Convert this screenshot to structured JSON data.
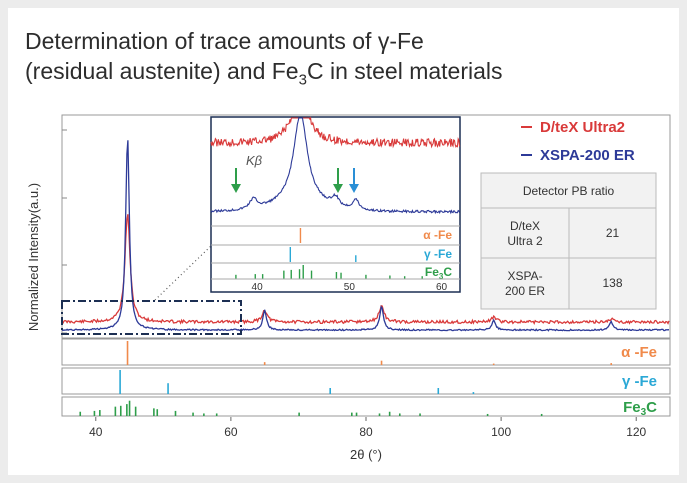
{
  "title": {
    "line1": "Determination of trace amounts of γ-Fe",
    "line2_prefix": "(residual austenite) and Fe",
    "line2_sub": "3",
    "line2_suffix": "C in steel materials"
  },
  "colors": {
    "dtex": "#d93a3a",
    "xspa": "#2d3a98",
    "alpha": "#f08a4b",
    "gamma": "#2aa8d6",
    "fe3c": "#2e9e4a",
    "box": "#1c2f53",
    "arrow_green": "#2e9e4a",
    "arrow_blue": "#2a8fd6"
  },
  "chart_data": {
    "type": "line",
    "xlabel": "2θ (°)",
    "ylabel": "Normalized Intensity(a.u.)",
    "xlim": [
      35,
      125
    ],
    "xticks": [
      40,
      60,
      80,
      100,
      120
    ],
    "series": [
      {
        "name": "D/teX Ultra2",
        "color": "#d93a3a",
        "peaks": [
          [
            44.7,
            0.54
          ],
          [
            65.0,
            0.06
          ],
          [
            82.3,
            0.08
          ],
          [
            98.9,
            0.025
          ],
          [
            116.3,
            0.015
          ]
        ]
      },
      {
        "name": "XSPA-200 ER",
        "color": "#2d3a98",
        "peaks": [
          [
            44.7,
            0.97
          ],
          [
            65.0,
            0.1
          ],
          [
            82.3,
            0.12
          ],
          [
            98.9,
            0.05
          ],
          [
            116.3,
            0.04
          ]
        ]
      }
    ],
    "reference_rows": [
      {
        "label_main": "α -Fe",
        "color": "#f08a4b",
        "lines": [
          [
            44.7,
            1.0
          ],
          [
            65.0,
            0.12
          ],
          [
            82.3,
            0.18
          ],
          [
            98.9,
            0.06
          ],
          [
            116.3,
            0.08
          ]
        ]
      },
      {
        "label_main": "γ -Fe",
        "color": "#2aa8d6",
        "lines": [
          [
            43.6,
            1.0
          ],
          [
            50.7,
            0.45
          ],
          [
            74.7,
            0.25
          ],
          [
            90.7,
            0.25
          ],
          [
            95.9,
            0.08
          ]
        ]
      },
      {
        "label_main": "Fe",
        "label_sub": "3",
        "label_tail": "C",
        "color": "#2e9e4a",
        "lines": [
          [
            37.7,
            0.25
          ],
          [
            39.8,
            0.3
          ],
          [
            40.6,
            0.35
          ],
          [
            42.9,
            0.55
          ],
          [
            43.7,
            0.6
          ],
          [
            44.6,
            0.7
          ],
          [
            45.0,
            0.9
          ],
          [
            45.9,
            0.55
          ],
          [
            48.6,
            0.45
          ],
          [
            49.1,
            0.4
          ],
          [
            51.8,
            0.3
          ],
          [
            54.4,
            0.2
          ],
          [
            56.0,
            0.15
          ],
          [
            57.9,
            0.15
          ],
          [
            70.1,
            0.2
          ],
          [
            77.9,
            0.2
          ],
          [
            78.6,
            0.2
          ],
          [
            82.0,
            0.15
          ],
          [
            83.5,
            0.25
          ],
          [
            85.0,
            0.15
          ],
          [
            88.0,
            0.15
          ],
          [
            98.0,
            0.12
          ],
          [
            106.0,
            0.12
          ]
        ]
      }
    ],
    "inset": {
      "xticks": [
        40,
        50,
        60
      ],
      "xlim": [
        35,
        62
      ],
      "peak_label": "Kβ",
      "rows": [
        {
          "label_main": "α -Fe",
          "color": "#f08a4b",
          "lines": [
            [
              44.7,
              1.0
            ]
          ]
        },
        {
          "label_main": "γ -Fe",
          "color": "#2aa8d6",
          "lines": [
            [
              43.6,
              1.0
            ],
            [
              50.7,
              0.45
            ]
          ]
        },
        {
          "label_main": "Fe",
          "label_sub": "3",
          "label_tail": "C",
          "color": "#2e9e4a",
          "lines": [
            [
              37.7,
              0.3
            ],
            [
              39.8,
              0.35
            ],
            [
              40.6,
              0.35
            ],
            [
              42.9,
              0.6
            ],
            [
              43.7,
              0.65
            ],
            [
              44.6,
              0.7
            ],
            [
              45.0,
              1.0
            ],
            [
              45.9,
              0.6
            ],
            [
              48.6,
              0.5
            ],
            [
              49.1,
              0.45
            ],
            [
              51.8,
              0.3
            ],
            [
              54.4,
              0.25
            ],
            [
              56.0,
              0.2
            ],
            [
              57.9,
              0.2
            ]
          ]
        }
      ]
    },
    "table": {
      "header": "Detector PB ratio",
      "rows": [
        {
          "name": "D/teX Ultra 2",
          "value": "21"
        },
        {
          "name": "XSPA-200 ER",
          "value": "138"
        }
      ]
    }
  }
}
